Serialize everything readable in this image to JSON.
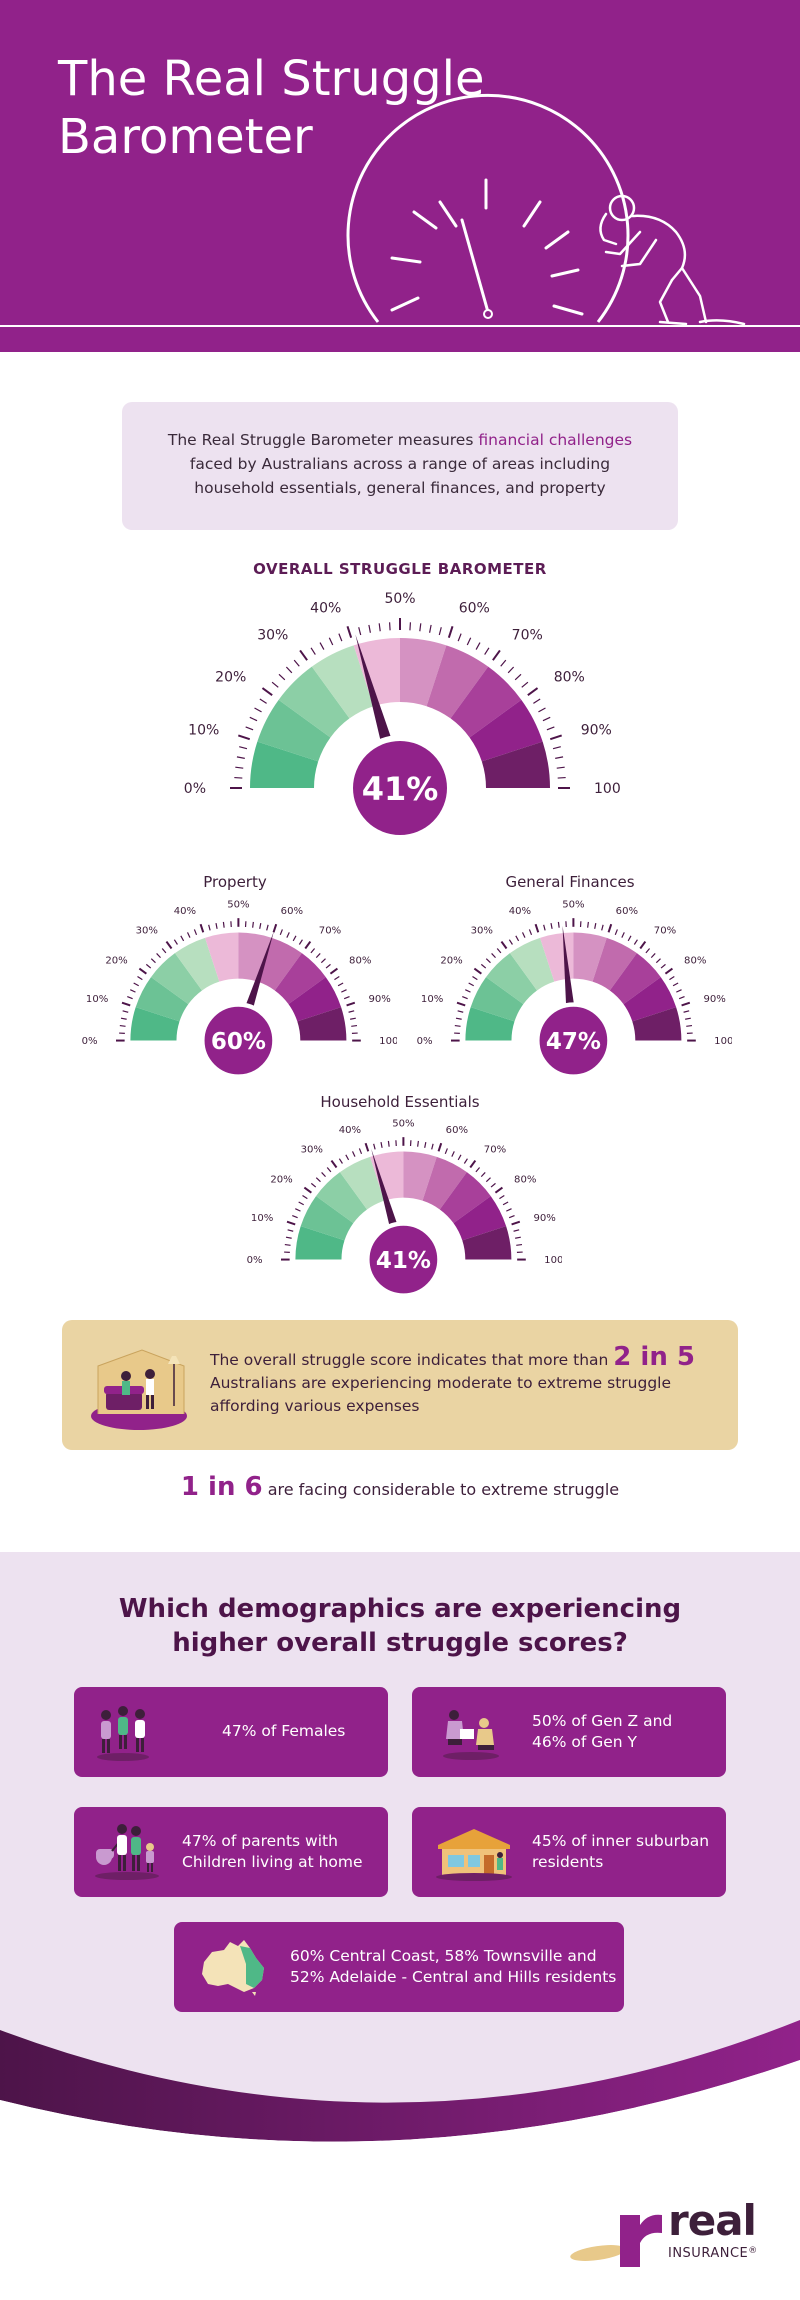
{
  "hero": {
    "title": "The Real Struggle Barometer"
  },
  "intro": {
    "text_before": "The Real Struggle Barometer measures ",
    "highlight": "financial challenges",
    "text_after": " faced by Australians across a range of areas including household essentials, general finances, and property"
  },
  "overall": {
    "heading": "OVERALL STRUGGLE BAROMETER",
    "value_label": "41%",
    "value": 41
  },
  "tick_labels": [
    "0%",
    "10%",
    "20%",
    "30%",
    "40%",
    "50%",
    "60%",
    "70%",
    "80%",
    "90%",
    "100%"
  ],
  "gauges": [
    {
      "title": "Property",
      "value_label": "60%",
      "value": 60
    },
    {
      "title": "General Finances",
      "value_label": "47%",
      "value": 47
    },
    {
      "title": "Household Essentials",
      "value_label": "41%",
      "value": 41
    }
  ],
  "colors": {
    "purple": "#91228a",
    "dark_purple": "#5c1c55",
    "green_dark": "#4fb887",
    "green_light": "#b7dfbf",
    "pink_light": "#ecb9d8",
    "plum": "#6e1f66",
    "sand": "#ead4a3",
    "lavender": "#ede2f0"
  },
  "statement": {
    "before": "The overall struggle score indicates that more than ",
    "highlight": "2 in 5",
    "after": "Australians are experiencing moderate to extreme struggle affording various expenses"
  },
  "one_in": {
    "highlight": "1 in 6",
    "text": " are facing considerable to extreme struggle"
  },
  "demographics": {
    "title_line1": "Which demographics are experiencing",
    "title_line2": "higher overall struggle scores?",
    "cards": [
      {
        "line1": "47% of Females",
        "line2": "",
        "icon": "women-icon"
      },
      {
        "line1": "50% of Gen Z and",
        "line2": "46% of Gen Y",
        "icon": "young-people-icon"
      },
      {
        "line1": "47% of parents with",
        "line2": "Children living at home",
        "icon": "family-icon"
      },
      {
        "line1": "45% of inner suburban",
        "line2": "residents",
        "icon": "house-icon"
      },
      {
        "line1": "60% Central Coast, 58% Townsville and",
        "line2": "52% Adelaide - Central and Hills residents",
        "icon": "australia-map-icon"
      }
    ]
  },
  "logo": {
    "word": "real",
    "sub": "INSURANCE",
    "mark": "®"
  }
}
